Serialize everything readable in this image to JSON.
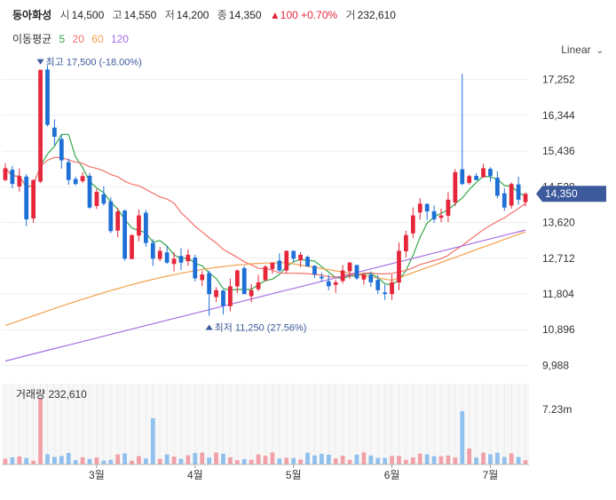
{
  "header": {
    "name": "동아화성",
    "open_label": "시",
    "open": "14,500",
    "high_label": "고",
    "high": "14,550",
    "low_label": "저",
    "low": "14,200",
    "close_label": "종",
    "close": "14,350",
    "change": "▲100",
    "change_pct": "+0.70%",
    "volume_label": "거",
    "volume": "232,610"
  },
  "ma_legend": {
    "label": "이동평균",
    "items": [
      {
        "period": "5",
        "color": "#35a84a"
      },
      {
        "period": "20",
        "color": "#f2706b"
      },
      {
        "period": "60",
        "color": "#f5a04c"
      },
      {
        "period": "120",
        "color": "#a86ee6"
      }
    ]
  },
  "scale_selector": {
    "value": "Linear",
    "icon": "chevron-down-icon"
  },
  "colors": {
    "up": "#e5263b",
    "down": "#1e6fd6",
    "up_vol": "#f2a0a8",
    "down_vol": "#8fc0ee",
    "tag": "#3d5a9c"
  },
  "chart_data": [
    {
      "type": "candlestick",
      "y_axis": {
        "ticks": [
          9988,
          10896,
          11804,
          12712,
          13620,
          14528,
          15436,
          16344,
          17252
        ],
        "tick_labels": [
          "9,988",
          "10,896",
          "11,804",
          "12,712",
          "13,620",
          "14,528",
          "15,436",
          "16,344",
          "17,252"
        ],
        "range": [
          9750,
          17650
        ]
      },
      "x_axis": {
        "tick_labels": [
          "3월",
          "4월",
          "5월",
          "6월",
          "7월"
        ]
      },
      "current_price": "14,350",
      "annotations": {
        "high": "최고 17,500 (-18.00%)",
        "low": "최저 11,250 (27.56%)"
      },
      "series": [
        "MA5",
        "MA20",
        "MA60",
        "MA120"
      ],
      "approx_closes": [
        15000,
        14600,
        14800,
        13700,
        14700,
        17500,
        16100,
        15800,
        15200,
        14700,
        14600,
        14800,
        14000,
        14400,
        14100,
        13400,
        13900,
        12700,
        13300,
        13800,
        13100,
        12700,
        12900,
        12600,
        12700,
        12600,
        12800,
        12200,
        12300,
        11800,
        11900,
        11500,
        12000,
        12400,
        11800,
        11900,
        12100,
        12500,
        12600,
        12400,
        12900,
        12700,
        12800,
        12500,
        12300,
        12200,
        12000,
        12100,
        12400,
        12600,
        12200,
        12300,
        12100,
        11900,
        11800,
        12100,
        12900,
        13300,
        13800,
        14100,
        13900,
        13700,
        13800,
        14200,
        14900,
        14600,
        14800,
        14700,
        15000,
        14800,
        14300,
        14000,
        14600,
        14200,
        14350
      ]
    },
    {
      "type": "bar",
      "title": "거래량",
      "value_label": "232,610",
      "y_axis": {
        "tick_labels": [
          "7.23m"
        ]
      }
    }
  ]
}
